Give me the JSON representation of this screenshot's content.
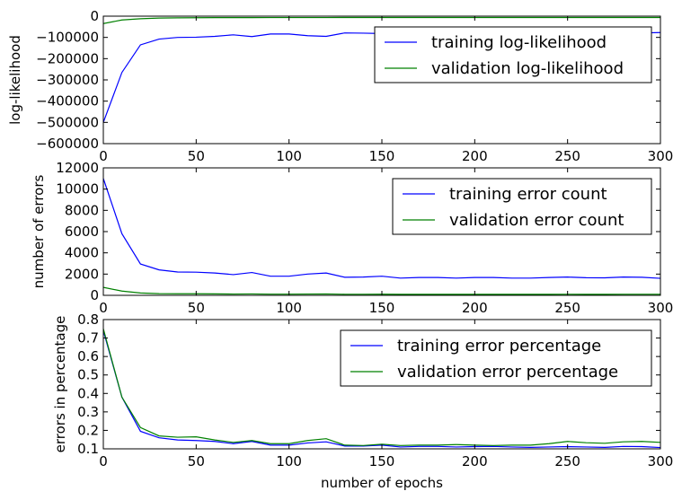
{
  "colors": {
    "training": "#0000ff",
    "validation": "#008000",
    "axes": "#000000",
    "background": "#ffffff"
  },
  "chart_data": [
    {
      "type": "line",
      "ylabel": "log-likelihood",
      "xlabel": "",
      "xlim": [
        0,
        300
      ],
      "ylim": [
        -600000,
        0
      ],
      "xticks": [
        0,
        50,
        100,
        150,
        200,
        250,
        300
      ],
      "xtick_labels": [
        "0",
        "50",
        "100",
        "150",
        "200",
        "250",
        "300"
      ],
      "yticks": [
        0,
        -100000,
        -200000,
        -300000,
        -400000,
        -500000,
        -600000
      ],
      "ytick_labels": [
        "0",
        "−100000",
        "−200000",
        "−300000",
        "−400000",
        "−500000",
        "−600000"
      ],
      "legend_position": "top-right",
      "grid": false,
      "x": [
        0,
        10,
        20,
        30,
        40,
        50,
        60,
        70,
        80,
        90,
        100,
        110,
        120,
        130,
        140,
        150,
        160,
        170,
        180,
        190,
        200,
        210,
        220,
        230,
        240,
        250,
        260,
        270,
        280,
        290,
        300
      ],
      "series": [
        {
          "name": "training log-likelihood",
          "color_key": "training",
          "values": [
            -500000,
            -265000,
            -135000,
            -108000,
            -100000,
            -99000,
            -95000,
            -88000,
            -96000,
            -84000,
            -84000,
            -92000,
            -95000,
            -79000,
            -80000,
            -82000,
            -80000,
            -79000,
            -80000,
            -81000,
            -79000,
            -80000,
            -78000,
            -80000,
            -79000,
            -78000,
            -79000,
            -80000,
            -78000,
            -79000,
            -77000
          ]
        },
        {
          "name": "validation log-likelihood",
          "color_key": "validation",
          "values": [
            -35000,
            -18000,
            -12000,
            -9000,
            -8000,
            -7500,
            -7000,
            -6800,
            -6800,
            -6500,
            -6500,
            -6500,
            -6500,
            -6300,
            -6300,
            -6300,
            -6300,
            -6300,
            -6300,
            -6300,
            -6300,
            -6300,
            -6300,
            -6300,
            -6300,
            -6300,
            -6300,
            -6300,
            -6300,
            -6300,
            -6300
          ]
        }
      ]
    },
    {
      "type": "line",
      "ylabel": "number of errors",
      "xlabel": "",
      "xlim": [
        0,
        300
      ],
      "ylim": [
        0,
        12000
      ],
      "xticks": [
        0,
        50,
        100,
        150,
        200,
        250,
        300
      ],
      "xtick_labels": [
        "0",
        "50",
        "100",
        "150",
        "200",
        "250",
        "300"
      ],
      "yticks": [
        0,
        2000,
        4000,
        6000,
        8000,
        10000,
        12000
      ],
      "ytick_labels": [
        "0",
        "2000",
        "4000",
        "6000",
        "8000",
        "10000",
        "12000"
      ],
      "legend_position": "top-right",
      "grid": false,
      "x": [
        0,
        10,
        20,
        30,
        40,
        50,
        60,
        70,
        80,
        90,
        100,
        110,
        120,
        130,
        140,
        150,
        160,
        170,
        180,
        190,
        200,
        210,
        220,
        230,
        240,
        250,
        260,
        270,
        280,
        290,
        300
      ],
      "series": [
        {
          "name": "training error count",
          "color_key": "training",
          "values": [
            11000,
            5800,
            2950,
            2400,
            2200,
            2180,
            2100,
            1950,
            2150,
            1800,
            1800,
            2000,
            2100,
            1700,
            1720,
            1800,
            1620,
            1680,
            1680,
            1620,
            1680,
            1680,
            1620,
            1620,
            1680,
            1720,
            1660,
            1650,
            1720,
            1700,
            1600
          ]
        },
        {
          "name": "validation error count",
          "color_key": "validation",
          "values": [
            750,
            400,
            220,
            160,
            150,
            150,
            140,
            120,
            130,
            110,
            110,
            120,
            130,
            100,
            100,
            105,
            95,
            95,
            95,
            95,
            95,
            95,
            95,
            95,
            95,
            100,
            95,
            95,
            100,
            100,
            100
          ]
        }
      ]
    },
    {
      "type": "line",
      "ylabel": "errors in percentage",
      "xlabel": "number of epochs",
      "xlim": [
        0,
        300
      ],
      "ylim": [
        0.1,
        0.8
      ],
      "xticks": [
        0,
        50,
        100,
        150,
        200,
        250,
        300
      ],
      "xtick_labels": [
        "0",
        "50",
        "100",
        "150",
        "200",
        "250",
        "300"
      ],
      "yticks": [
        0.1,
        0.2,
        0.3,
        0.4,
        0.5,
        0.6,
        0.7,
        0.8
      ],
      "ytick_labels": [
        "0.1",
        "0.2",
        "0.3",
        "0.4",
        "0.5",
        "0.6",
        "0.7",
        "0.8"
      ],
      "legend_position": "top-right",
      "grid": false,
      "x": [
        0,
        10,
        20,
        30,
        40,
        50,
        60,
        70,
        80,
        90,
        100,
        110,
        120,
        130,
        140,
        150,
        160,
        170,
        180,
        190,
        200,
        210,
        220,
        230,
        240,
        250,
        260,
        270,
        280,
        290,
        300
      ],
      "series": [
        {
          "name": "training error percentage",
          "color_key": "training",
          "values": [
            0.74,
            0.38,
            0.195,
            0.16,
            0.148,
            0.145,
            0.14,
            0.128,
            0.14,
            0.12,
            0.12,
            0.132,
            0.138,
            0.115,
            0.115,
            0.12,
            0.11,
            0.113,
            0.113,
            0.11,
            0.112,
            0.113,
            0.11,
            0.108,
            0.11,
            0.112,
            0.11,
            0.108,
            0.113,
            0.112,
            0.107
          ]
        },
        {
          "name": "validation error percentage",
          "color_key": "validation",
          "values": [
            0.75,
            0.38,
            0.215,
            0.17,
            0.163,
            0.165,
            0.148,
            0.135,
            0.145,
            0.128,
            0.128,
            0.145,
            0.155,
            0.12,
            0.118,
            0.125,
            0.118,
            0.12,
            0.12,
            0.123,
            0.12,
            0.118,
            0.12,
            0.12,
            0.128,
            0.14,
            0.133,
            0.13,
            0.138,
            0.14,
            0.135
          ]
        }
      ]
    }
  ]
}
